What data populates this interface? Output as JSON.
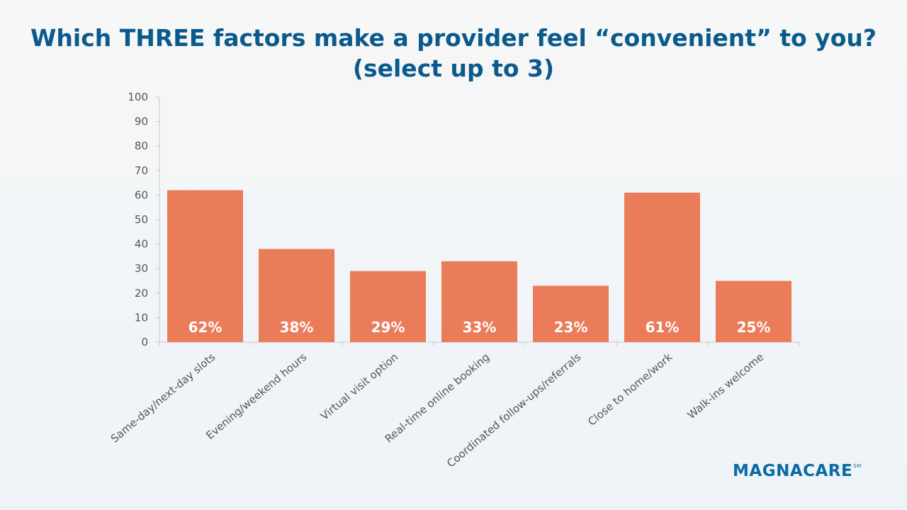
{
  "header": {
    "title_line1": "Which THREE factors make a provider feel “convenient” to you?",
    "title_line2": "(select up to 3)"
  },
  "logo": {
    "text": "MAGNACARE",
    "mark": "SM"
  },
  "colors": {
    "bar": "#eb7c59",
    "title": "#0b5a8c",
    "axis": "#c8c8c8",
    "tick_text": "#555555",
    "data_label": "#ffffff"
  },
  "chart_data": {
    "type": "bar",
    "title": "Which THREE factors make a provider feel “convenient” to you? (select up to 3)",
    "categories": [
      "Same-day/next-day slots",
      "Evening/weekend hours",
      "Virtual visit option",
      "Real-time online booking",
      "Coordinated follow-ups/referrals",
      "Close to home/work",
      "Walk-ins welcome"
    ],
    "values": [
      62,
      38,
      29,
      33,
      23,
      61,
      25
    ],
    "data_labels": [
      "62%",
      "38%",
      "29%",
      "33%",
      "23%",
      "61%",
      "25%"
    ],
    "ylim": [
      0,
      100
    ],
    "yticks": [
      0,
      10,
      20,
      30,
      40,
      50,
      60,
      70,
      80,
      90,
      100
    ],
    "xlabel": "",
    "ylabel": "",
    "grid": false,
    "legend": "none"
  }
}
